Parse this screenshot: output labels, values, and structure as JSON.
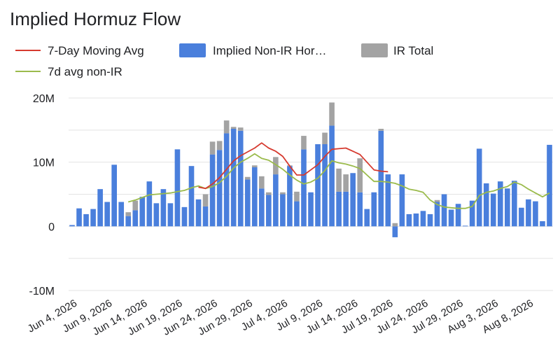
{
  "chart_data": {
    "type": "bar",
    "title": "Implied Hormuz Flow",
    "xlabel": "",
    "ylabel": "",
    "ylim": [
      -10,
      20
    ],
    "y_unit": "M",
    "y_ticks": [
      {
        "value": 20,
        "label": "20M"
      },
      {
        "value": 10,
        "label": "10M"
      },
      {
        "value": 0,
        "label": "0"
      },
      {
        "value": -10,
        "label": "-10M"
      }
    ],
    "x_tick_labels": [
      "Jun 4, 2026",
      "Jun 9, 2026",
      "Jun 14, 2026",
      "Jun 19, 2026",
      "Jun 24, 2026",
      "Jun 29, 2026",
      "Jul 4, 2026",
      "Jul 9, 2026",
      "Jul 14, 2026",
      "Jul 19, 2026",
      "Jul 24, 2026",
      "Jul 29, 2026",
      "Aug 3, 2026",
      "Aug 8, 2026"
    ],
    "grid": true,
    "legend_position": "top-left",
    "colors": {
      "non_ir": "#4a7fdc",
      "ir": "#a3a3a3",
      "ma7": "#d63a2f",
      "ma7_non_ir": "#9bbb4c",
      "grid": "#e3e3e3"
    },
    "legend": [
      {
        "label": "7-Day Moving Avg",
        "kind": "line",
        "color": "#d63a2f"
      },
      {
        "label": "Implied Non-IR Hor…",
        "kind": "box",
        "color": "#4a7fdc"
      },
      {
        "label": "IR Total",
        "kind": "box",
        "color": "#a3a3a3"
      },
      {
        "label": "7d avg non-IR",
        "kind": "line",
        "color": "#9bbb4c"
      }
    ],
    "series": [
      {
        "name": "Implied Non-IR Hor…",
        "kind": "bar",
        "values": [
          0.2,
          2.8,
          1.9,
          2.7,
          5.8,
          3.8,
          9.6,
          3.8,
          1.6,
          2.5,
          4.6,
          7.0,
          3.6,
          5.8,
          3.6,
          12.0,
          3.0,
          9.4,
          4.2,
          3.1,
          11.2,
          11.9,
          14.5,
          15.2,
          14.9,
          7.3,
          9.2,
          5.9,
          4.9,
          8.1,
          5.0,
          9.4,
          3.9,
          12.0,
          5.3,
          12.8,
          12.8,
          15.7,
          5.4,
          5.4,
          8.3,
          5.3,
          2.7,
          5.3,
          14.9,
          8.1,
          -1.7,
          8.1,
          1.9,
          2.0,
          2.4,
          1.9,
          3.8,
          5.0,
          2.6,
          3.5,
          0.1,
          4.0,
          12.1,
          6.7,
          5.1,
          7.0,
          5.9,
          7.1,
          2.9,
          4.2,
          3.9,
          0.8,
          12.7
        ]
      },
      {
        "name": "IR Total",
        "kind": "bar",
        "values": [
          0,
          0,
          0,
          0,
          0,
          0,
          0,
          0,
          0.6,
          1.5,
          0,
          0,
          0,
          0,
          0,
          0,
          0,
          0,
          0,
          1.9,
          2.0,
          1.4,
          2.0,
          0.3,
          0.5,
          0.4,
          0.3,
          1.9,
          0.4,
          2.7,
          0.3,
          0.1,
          1.5,
          2.1,
          0,
          0,
          1.8,
          3.6,
          3.6,
          2.7,
          0,
          5.3,
          0,
          0,
          0.3,
          0,
          0.5,
          0,
          0,
          0,
          0,
          0,
          0.3,
          0,
          0,
          0,
          0,
          0,
          0,
          0,
          0,
          0,
          0,
          0,
          0,
          0,
          0,
          0,
          0
        ]
      },
      {
        "name": "7-Day Moving Avg",
        "kind": "line",
        "values": [
          null,
          null,
          null,
          null,
          null,
          null,
          null,
          null,
          null,
          null,
          null,
          null,
          null,
          null,
          null,
          null,
          null,
          null,
          6.1,
          5.9,
          6.6,
          7.6,
          8.9,
          10.2,
          11.0,
          11.6,
          12.2,
          13.0,
          12.2,
          11.7,
          10.9,
          9.4,
          8.0,
          8.0,
          8.8,
          9.6,
          10.9,
          12.0,
          12.1,
          12.2,
          11.7,
          11.2,
          10.0,
          8.8,
          8.6,
          8.5,
          null,
          null,
          null,
          null,
          null,
          null,
          null,
          null,
          null,
          null,
          null,
          null,
          null,
          null,
          null,
          null,
          null,
          null,
          null,
          null,
          null,
          null,
          null
        ]
      },
      {
        "name": "7d avg non-IR",
        "kind": "line",
        "values": [
          null,
          null,
          null,
          null,
          null,
          null,
          null,
          null,
          3.8,
          4.1,
          4.5,
          4.9,
          5.0,
          5.1,
          5.2,
          5.4,
          5.6,
          6.0,
          6.3,
          5.9,
          6.2,
          6.8,
          7.8,
          9.1,
          10.0,
          10.6,
          11.3,
          10.6,
          10.3,
          9.6,
          8.9,
          8.0,
          7.2,
          6.6,
          6.9,
          7.5,
          8.7,
          10.2,
          9.9,
          9.7,
          9.4,
          9.0,
          8.0,
          7.0,
          7.0,
          6.9,
          6.7,
          6.3,
          5.8,
          5.6,
          5.3,
          4.1,
          3.4,
          3.0,
          2.9,
          2.8,
          2.8,
          3.1,
          4.8,
          5.3,
          5.5,
          5.9,
          6.2,
          6.9,
          6.5,
          5.8,
          5.2,
          4.6,
          5.2
        ]
      }
    ]
  }
}
